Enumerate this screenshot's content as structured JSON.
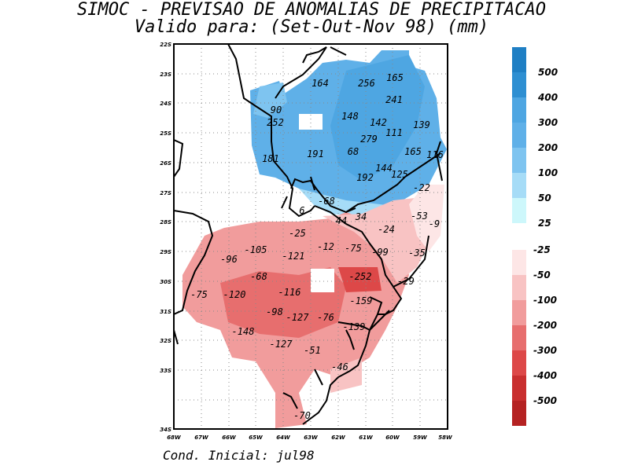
{
  "title": "SIMOC - PREVISAO DE ANOMALIAS DE PRECIPITACAO",
  "subtitle": "Valido para: (Set-Out-Nov 98) (mm)",
  "caption": "Cond. Inicial: jul98",
  "latitude_labels": [
    "22S",
    "23S",
    "24S",
    "25S",
    "26S",
    "27S",
    "28S",
    "29S",
    "30S",
    "31S",
    "32S",
    "33S",
    "34S"
  ],
  "longitude_labels": [
    "68W",
    "67W",
    "66W",
    "65W",
    "64W",
    "63W",
    "62W",
    "61W",
    "60W",
    "59W",
    "58W"
  ],
  "positive_legend": {
    "labels": [
      "500",
      "400",
      "300",
      "200",
      "100",
      "50",
      "25"
    ],
    "colors": [
      "#1f7fc4",
      "#2e8fd2",
      "#4ea6e2",
      "#5fb0e8",
      "#7ec4f0",
      "#a6dcf7",
      "#cdf7fb"
    ]
  },
  "negative_legend": {
    "labels": [
      "-25",
      "-50",
      "-100",
      "-200",
      "-300",
      "-400",
      "-500"
    ],
    "colors": [
      "#fde6e6",
      "#f8c3c3",
      "#f19c9c",
      "#e76e6e",
      "#dd4848",
      "#c92f2f",
      "#b52222"
    ]
  },
  "map_values": {
    "positive": [
      "164",
      "256",
      "165",
      "241",
      "90",
      "252",
      "148",
      "142",
      "139",
      "111",
      "279",
      "68",
      "191",
      "181",
      "165",
      "116",
      "144",
      "125",
      "192"
    ],
    "negative": [
      "-22",
      "-68",
      "6",
      "44",
      "34",
      "-53",
      "-9",
      "-24",
      "-25",
      "-105",
      "-121",
      "-12",
      "-75",
      "-99",
      "-35",
      "-96",
      "-68",
      "-252",
      "-29",
      "-116",
      "-120",
      "-75",
      "-159",
      "-98",
      "-127",
      "-76",
      "-139",
      "-148",
      "-127",
      "-51",
      "-46",
      "-70"
    ]
  }
}
